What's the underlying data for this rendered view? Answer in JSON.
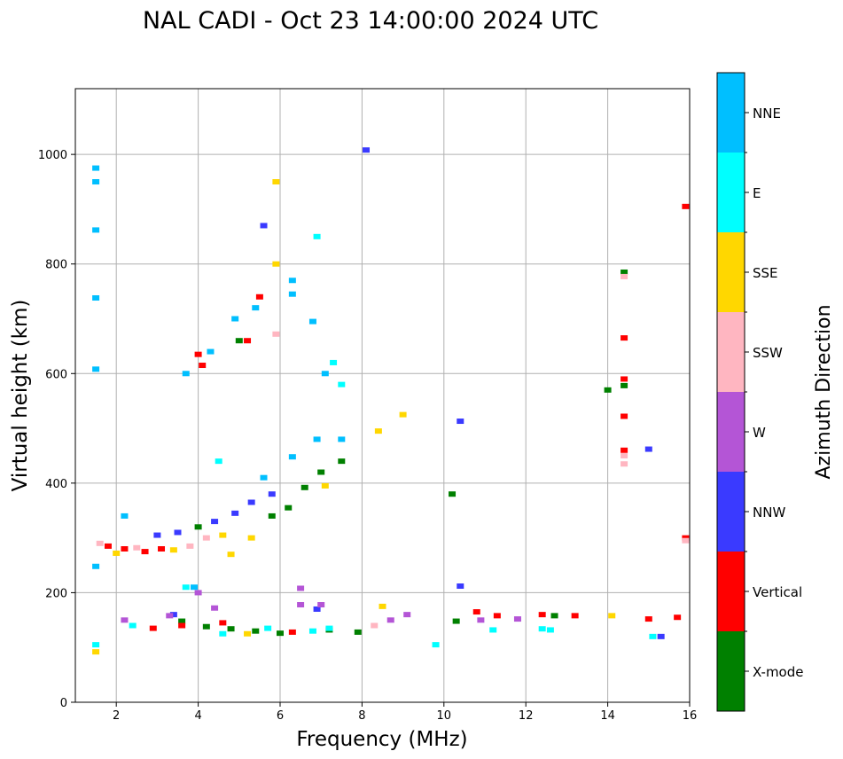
{
  "chart_data": {
    "type": "scatter",
    "title": "NAL CADI - Oct 23 14:00:00 2024 UTC",
    "xlabel": "Frequency (MHz)",
    "ylabel": "Virtual height (km)",
    "xlim": [
      1.0,
      16.0
    ],
    "ylim": [
      0,
      1120
    ],
    "xticks": [
      2,
      4,
      6,
      8,
      10,
      12,
      14,
      16
    ],
    "yticks": [
      0,
      200,
      400,
      600,
      800,
      1000
    ],
    "grid": true,
    "colorbar": {
      "label": "Azimuth Direction",
      "categories": [
        {
          "name": "X-mode",
          "color": "#008000"
        },
        {
          "name": "Vertical",
          "color": "#ff0000"
        },
        {
          "name": "NNW",
          "color": "#3a3aff"
        },
        {
          "name": "W",
          "color": "#b455d6"
        },
        {
          "name": "SSW",
          "color": "#ffb6c1"
        },
        {
          "name": "SSE",
          "color": "#ffd700"
        },
        {
          "name": "E",
          "color": "#00ffff"
        },
        {
          "name": "NNE",
          "color": "#00bfff"
        }
      ]
    },
    "series": [
      {
        "name": "X-mode",
        "points": [
          [
            3.6,
            148
          ],
          [
            4.2,
            138
          ],
          [
            4.8,
            134
          ],
          [
            5.4,
            130
          ],
          [
            6.0,
            126
          ],
          [
            7.2,
            132
          ],
          [
            7.9,
            128
          ],
          [
            10.3,
            148
          ],
          [
            12.7,
            158
          ],
          [
            14.4,
            785
          ],
          [
            14.4,
            578
          ],
          [
            14.0,
            570
          ],
          [
            6.6,
            392
          ],
          [
            7.0,
            420
          ],
          [
            7.5,
            440
          ],
          [
            5.8,
            340
          ],
          [
            6.2,
            355
          ],
          [
            5.0,
            660
          ],
          [
            4.0,
            320
          ],
          [
            10.2,
            380
          ]
        ]
      },
      {
        "name": "Vertical",
        "points": [
          [
            1.8,
            285
          ],
          [
            2.2,
            280
          ],
          [
            2.7,
            275
          ],
          [
            3.1,
            280
          ],
          [
            3.6,
            140
          ],
          [
            4.0,
            635
          ],
          [
            4.1,
            615
          ],
          [
            5.2,
            660
          ],
          [
            5.5,
            740
          ],
          [
            6.3,
            128
          ],
          [
            10.8,
            165
          ],
          [
            11.3,
            158
          ],
          [
            12.4,
            160
          ],
          [
            13.2,
            158
          ],
          [
            14.4,
            665
          ],
          [
            14.4,
            522
          ],
          [
            14.4,
            460
          ],
          [
            14.4,
            590
          ],
          [
            15.0,
            152
          ],
          [
            15.7,
            155
          ],
          [
            15.9,
            905
          ],
          [
            15.9,
            300
          ],
          [
            2.9,
            135
          ],
          [
            4.6,
            145
          ]
        ]
      },
      {
        "name": "NNW",
        "points": [
          [
            3.0,
            305
          ],
          [
            3.5,
            310
          ],
          [
            4.4,
            330
          ],
          [
            4.9,
            345
          ],
          [
            5.3,
            365
          ],
          [
            5.8,
            380
          ],
          [
            6.9,
            170
          ],
          [
            8.1,
            1008
          ],
          [
            10.4,
            513
          ],
          [
            10.4,
            212
          ],
          [
            15.0,
            462
          ],
          [
            15.3,
            120
          ],
          [
            5.6,
            870
          ],
          [
            3.4,
            160
          ]
        ]
      },
      {
        "name": "W",
        "points": [
          [
            2.2,
            150
          ],
          [
            3.3,
            158
          ],
          [
            4.0,
            200
          ],
          [
            4.4,
            172
          ],
          [
            6.5,
            178
          ],
          [
            7.0,
            178
          ],
          [
            8.7,
            150
          ],
          [
            9.1,
            160
          ],
          [
            10.9,
            150
          ],
          [
            11.8,
            152
          ],
          [
            6.5,
            208
          ]
        ]
      },
      {
        "name": "SSW",
        "points": [
          [
            1.6,
            290
          ],
          [
            2.5,
            282
          ],
          [
            3.8,
            285
          ],
          [
            4.2,
            300
          ],
          [
            8.3,
            140
          ],
          [
            14.4,
            450
          ],
          [
            14.4,
            435
          ],
          [
            15.9,
            295
          ],
          [
            14.4,
            777
          ],
          [
            5.9,
            672
          ]
        ]
      },
      {
        "name": "SSE",
        "points": [
          [
            1.5,
            92
          ],
          [
            2.0,
            272
          ],
          [
            3.4,
            278
          ],
          [
            4.6,
            305
          ],
          [
            5.3,
            300
          ],
          [
            5.9,
            800
          ],
          [
            5.9,
            950
          ],
          [
            7.1,
            395
          ],
          [
            8.5,
            175
          ],
          [
            8.4,
            495
          ],
          [
            9.0,
            525
          ],
          [
            14.1,
            158
          ],
          [
            4.8,
            270
          ],
          [
            5.2,
            125
          ]
        ]
      },
      {
        "name": "E",
        "points": [
          [
            1.5,
            105
          ],
          [
            2.4,
            140
          ],
          [
            3.7,
            210
          ],
          [
            4.6,
            125
          ],
          [
            5.7,
            135
          ],
          [
            6.8,
            130
          ],
          [
            7.2,
            135
          ],
          [
            9.8,
            105
          ],
          [
            11.2,
            132
          ],
          [
            12.4,
            134
          ],
          [
            12.6,
            132
          ],
          [
            15.1,
            120
          ],
          [
            6.9,
            850
          ],
          [
            7.3,
            620
          ],
          [
            7.5,
            580
          ],
          [
            4.5,
            440
          ]
        ]
      },
      {
        "name": "NNE",
        "points": [
          [
            1.5,
            975
          ],
          [
            1.5,
            950
          ],
          [
            1.5,
            862
          ],
          [
            1.5,
            738
          ],
          [
            1.5,
            608
          ],
          [
            1.5,
            248
          ],
          [
            2.2,
            340
          ],
          [
            3.7,
            600
          ],
          [
            4.3,
            640
          ],
          [
            4.9,
            700
          ],
          [
            5.4,
            720
          ],
          [
            6.3,
            770
          ],
          [
            6.3,
            745
          ],
          [
            6.8,
            695
          ],
          [
            7.1,
            600
          ],
          [
            6.3,
            448
          ],
          [
            6.9,
            480
          ],
          [
            5.6,
            410
          ],
          [
            7.5,
            480
          ],
          [
            3.9,
            210
          ]
        ]
      }
    ]
  }
}
